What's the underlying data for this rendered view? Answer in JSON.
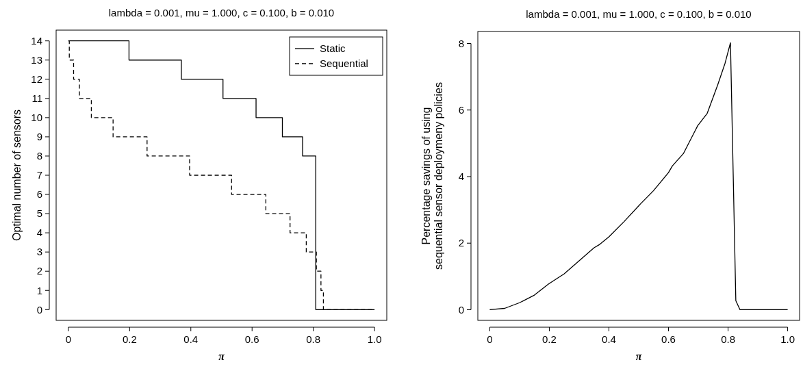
{
  "chart_data": [
    {
      "type": "step",
      "title": "lambda = 0.001, mu = 1.000, c = 0.100, b = 0.010",
      "xlabel": "π",
      "ylabel": "Optimal number of sensors",
      "xlim": [
        -0.04,
        1.04
      ],
      "ylim": [
        -0.56,
        14.56
      ],
      "xticks": [
        0,
        0.2,
        0.4,
        0.6,
        0.8,
        {
          "value": 1,
          "label": "1.0"
        }
      ],
      "yticks": [
        0,
        1,
        2,
        3,
        4,
        5,
        6,
        7,
        8,
        9,
        10,
        11,
        12,
        13,
        14
      ],
      "grid": false,
      "legend": "top right",
      "series": [
        {
          "name": "Static",
          "color": "#000000",
          "line_style": "solid",
          "x": [
            0,
            0.198,
            0.369,
            0.505,
            0.613,
            0.699,
            0.765,
            0.808,
            1.0
          ],
          "values": [
            14,
            13,
            12,
            11,
            10,
            9,
            8,
            0,
            0
          ]
        },
        {
          "name": "Sequential",
          "color": "#000000",
          "line_style": "dashed",
          "x": [
            0,
            0.003,
            0.017,
            0.036,
            0.075,
            0.146,
            0.257,
            0.396,
            0.533,
            0.645,
            0.724,
            0.777,
            0.81,
            0.825,
            0.833,
            1.0
          ],
          "values": [
            14,
            13,
            12,
            11,
            10,
            9,
            8,
            7,
            6,
            5,
            4,
            3,
            2,
            1,
            0,
            0
          ]
        }
      ]
    },
    {
      "type": "line",
      "title": "lambda = 0.001, mu = 1.000, c = 0.100, b = 0.010",
      "xlabel": "π",
      "ylabel": "Percentage savings of using\nsequential sensor deploymeny policies",
      "xlim": [
        -0.04,
        1.04
      ],
      "ylim": [
        -0.32,
        8.36
      ],
      "xticks": [
        0,
        0.2,
        0.4,
        0.6,
        0.8,
        {
          "value": 1,
          "label": "1.0"
        }
      ],
      "yticks": [
        0,
        2,
        4,
        6,
        8
      ],
      "grid": false,
      "legend": false,
      "series": [
        {
          "color": "#000000",
          "line_style": "solid",
          "x": [
            0,
            0.05,
            0.1,
            0.15,
            0.197,
            0.25,
            0.3,
            0.35,
            0.367,
            0.4,
            0.45,
            0.5,
            0.506,
            0.55,
            0.6,
            0.613,
            0.65,
            0.698,
            0.73,
            0.765,
            0.79,
            0.808,
            0.826,
            0.84,
            1.0
          ],
          "values": [
            0,
            0.04,
            0.21,
            0.44,
            0.77,
            1.08,
            1.47,
            1.86,
            1.95,
            2.19,
            2.64,
            3.12,
            3.18,
            3.58,
            4.12,
            4.32,
            4.69,
            5.53,
            5.9,
            6.75,
            7.41,
            8.02,
            0.27,
            0,
            0
          ]
        }
      ]
    }
  ]
}
